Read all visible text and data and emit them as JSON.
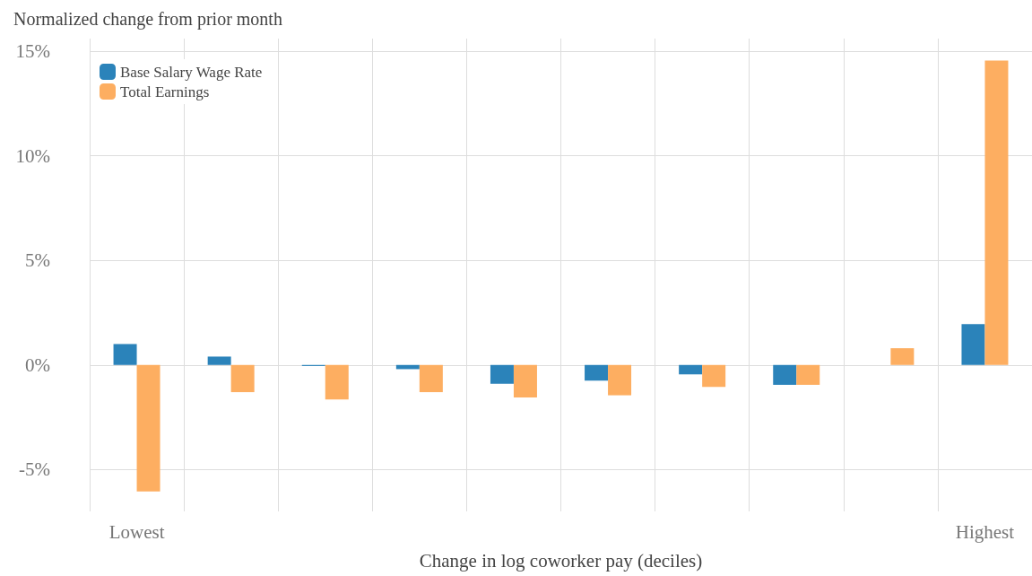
{
  "chart_data": {
    "type": "bar",
    "title": "Normalized change from prior month",
    "xlabel": "Change in log coworker pay (deciles)",
    "categories": [
      "Lowest",
      null,
      null,
      null,
      null,
      null,
      null,
      null,
      null,
      "Highest"
    ],
    "series": [
      {
        "name": "Base Salary Wage Rate",
        "color": "#2b83ba",
        "values": [
          1.0,
          0.4,
          -0.05,
          -0.2,
          -0.9,
          -0.75,
          -0.45,
          -0.95,
          null,
          1.95
        ]
      },
      {
        "name": "Total Earnings",
        "color": "#fdae61",
        "values": [
          -6.05,
          -1.3,
          -1.65,
          -1.3,
          -1.55,
          -1.45,
          -1.05,
          -0.95,
          0.8,
          14.55
        ]
      }
    ],
    "ylim": [
      -7,
      15.6
    ],
    "yticks": [
      {
        "value": -5,
        "label": "-5%"
      },
      {
        "value": 0,
        "label": "0%"
      },
      {
        "value": 5,
        "label": "5%"
      },
      {
        "value": 10,
        "label": "10%"
      },
      {
        "value": 15,
        "label": "15%"
      }
    ],
    "grid": true,
    "legend": "top left"
  }
}
